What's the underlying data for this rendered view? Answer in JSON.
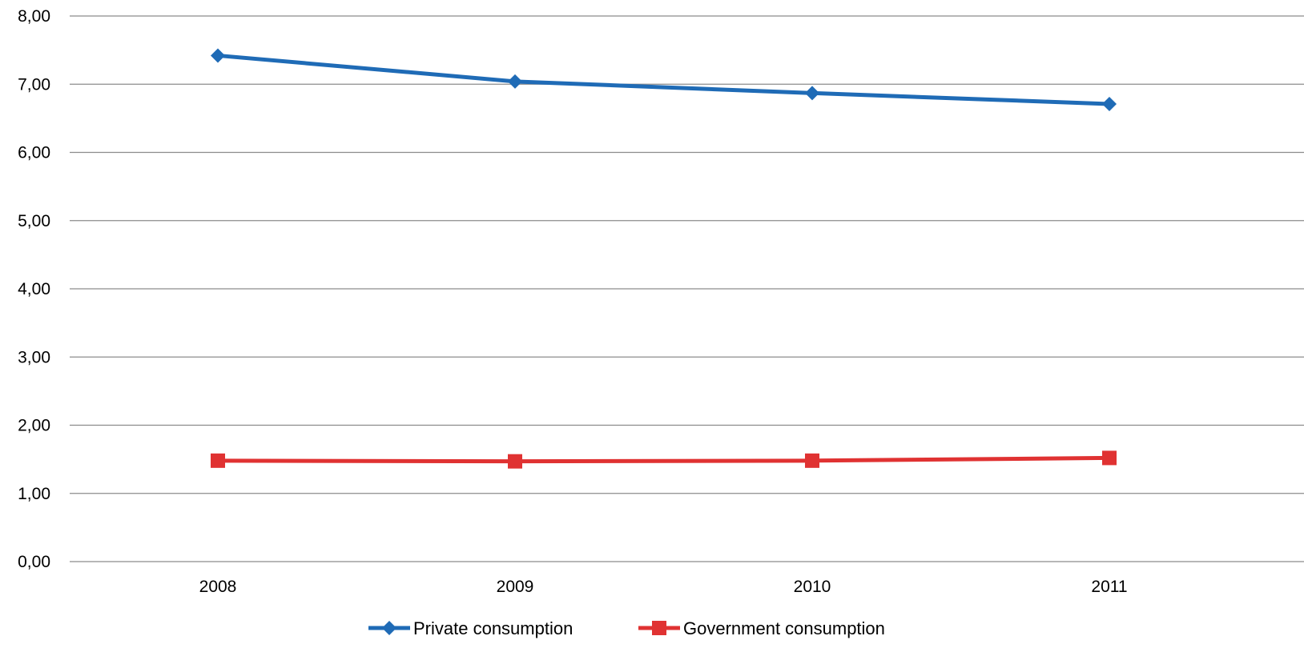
{
  "chart_data": {
    "type": "line",
    "categories": [
      "2008",
      "2009",
      "2010",
      "2011"
    ],
    "series": [
      {
        "name": "Private consumption",
        "values": [
          7.42,
          7.04,
          6.87,
          6.71
        ],
        "color": "#1f6bb6",
        "marker": "diamond"
      },
      {
        "name": "Government consumption",
        "values": [
          1.48,
          1.47,
          1.48,
          1.52
        ],
        "color": "#e03232",
        "marker": "square"
      }
    ],
    "y_ticks": [
      "0,00",
      "1,00",
      "2,00",
      "3,00",
      "4,00",
      "5,00",
      "6,00",
      "7,00",
      "8,00"
    ],
    "ylim": [
      0,
      8
    ],
    "grid": true,
    "legend_position": "bottom",
    "title": "",
    "xlabel": "",
    "ylabel": ""
  }
}
